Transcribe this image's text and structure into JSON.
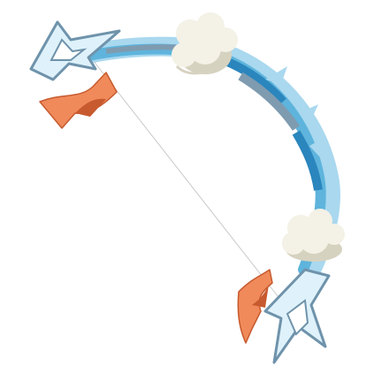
{
  "artwork": {
    "subject": "bow-icon",
    "colors": {
      "limb_light": "#a9d8ef",
      "limb_mid": "#5eb4dc",
      "limb_dark": "#2a86bd",
      "limb_grey": "#7f9bb0",
      "tip_outline": "#6f93ab",
      "tip_fill": "#dff2fb",
      "ribbon_light": "#f08a5a",
      "ribbon_dark": "#c75a2e",
      "cloud_fill": "#f4f1e6",
      "cloud_shadow": "#d6d2c0",
      "string": "#c9c9c9"
    }
  }
}
